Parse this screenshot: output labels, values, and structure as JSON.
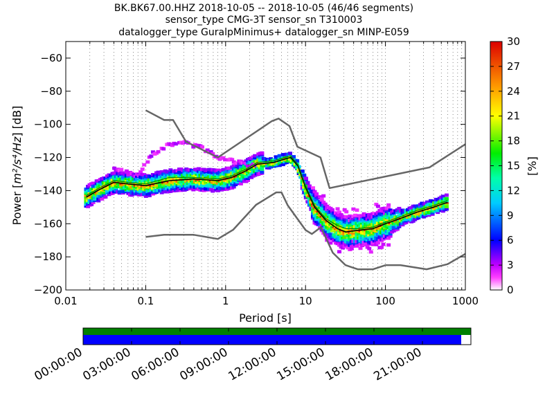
{
  "title_lines": [
    "BK.BK67.00.HHZ   2018-10-05 -- 2018-10-05  (46/46 segments)",
    "sensor_type CMG-3T sensor_sn T310003",
    "datalogger_type GuralpMinimus+ datalogger_sn MINP-E059"
  ],
  "chart_data": {
    "type": "heatmap",
    "xlabel": "Period [s]",
    "ylabel_prefix": "Power [",
    "ylabel_unit": "m²/s⁴/Hz",
    "ylabel_suffix": "] [dB]",
    "x_scale": "log",
    "xlim": [
      0.01,
      1000
    ],
    "ylim": [
      -200,
      -50
    ],
    "x_ticks": [
      0.01,
      0.1,
      1,
      10,
      100,
      1000
    ],
    "x_tick_labels": [
      "0.01",
      "0.1",
      "1",
      "10",
      "100",
      "1000"
    ],
    "y_ticks": [
      -200,
      -180,
      -160,
      -140,
      -120,
      -100,
      -80,
      -60
    ],
    "y_tick_labels": [
      "−200",
      "−180",
      "−160",
      "−140",
      "−120",
      "−100",
      "−80",
      "−60"
    ],
    "grid": "dotted vertical at log decades and sub-decades",
    "colorbar": {
      "label": "[%]",
      "range": [
        0,
        30
      ],
      "ticks": [
        0,
        3,
        6,
        9,
        12,
        15,
        18,
        21,
        24,
        27,
        30
      ],
      "tick_labels": [
        "0",
        "3",
        "6",
        "9",
        "12",
        "15",
        "18",
        "21",
        "24",
        "27",
        "30"
      ]
    },
    "series": [
      {
        "role": "high-noise-model",
        "color": "#666666",
        "x": [
          0.1,
          0.17,
          0.22,
          0.32,
          0.8,
          3.8,
          4.6,
          6.3,
          7.9,
          15.4,
          20,
          354.8,
          1000
        ],
        "y": [
          -91.5,
          -97.4,
          -97.4,
          -110.5,
          -120,
          -98,
          -96.5,
          -101,
          -113.5,
          -120,
          -138.5,
          -126,
          -112
        ]
      },
      {
        "role": "low-noise-model",
        "color": "#666666",
        "x": [
          0.1,
          0.17,
          0.4,
          0.8,
          1.24,
          2.4,
          4.3,
          5,
          6,
          10,
          12,
          15.6,
          21.9,
          31.6,
          45,
          70,
          101,
          154,
          328,
          600,
          1000
        ],
        "y": [
          -168,
          -166.7,
          -166.7,
          -169.2,
          -163.7,
          -148.6,
          -141.1,
          -141.1,
          -149,
          -163.8,
          -166.2,
          -162.1,
          -177.5,
          -185,
          -187.5,
          -187.5,
          -185,
          -185,
          -187.5,
          -184.4,
          -178.2
        ]
      },
      {
        "role": "mean-psd",
        "color": "#000000",
        "x": [
          0.018,
          0.025,
          0.04,
          0.06,
          0.1,
          0.2,
          0.4,
          0.8,
          1.2,
          1.8,
          2.5,
          4,
          5.5,
          6.5,
          8,
          10,
          13,
          18,
          25,
          32,
          45,
          70,
          100,
          150,
          250,
          400,
          600
        ],
        "y": [
          -144,
          -140,
          -135,
          -136,
          -137,
          -134,
          -133,
          -134,
          -132,
          -128,
          -124,
          -123,
          -121,
          -120,
          -125,
          -138,
          -150,
          -158,
          -163,
          -165,
          -164,
          -163,
          -160,
          -157,
          -153,
          -150,
          -147
        ]
      },
      {
        "role": "mode-psd",
        "color": "#008000",
        "x": [
          0.018,
          0.025,
          0.04,
          0.06,
          0.1,
          0.2,
          0.4,
          0.8,
          1.2,
          1.8,
          2.5,
          4,
          5.5,
          6.5,
          8,
          10,
          13,
          18,
          25,
          32,
          45,
          70,
          100,
          150,
          250,
          400,
          600
        ],
        "y": [
          -143,
          -139,
          -134,
          -135,
          -136,
          -132,
          -132,
          -133,
          -131,
          -127,
          -123,
          -122,
          -120,
          -119,
          -124,
          -137,
          -149,
          -157,
          -161,
          -163,
          -163,
          -162,
          -159,
          -156,
          -152,
          -149,
          -146
        ]
      },
      {
        "role": "outlier-psd",
        "color": "#e000ff",
        "x": [
          0.04,
          0.06,
          0.08,
          0.12,
          0.2,
          0.3,
          0.5,
          0.8,
          1.2,
          1.8,
          2.5
        ],
        "y": [
          -127,
          -129,
          -131,
          -118,
          -112,
          -111,
          -114,
          -120,
          -122,
          -124,
          -125
        ]
      }
    ],
    "timeline": {
      "tick_labels": [
        "00:00:00",
        "03:00:00",
        "06:00:00",
        "09:00:00",
        "12:00:00",
        "15:00:00",
        "18:00:00",
        "21:00:00"
      ],
      "data_coverage": [
        0,
        1.0
      ],
      "psd_coverage": [
        0,
        0.975
      ],
      "colors": {
        "data": "#008000",
        "psd": "#0000ff"
      }
    }
  }
}
